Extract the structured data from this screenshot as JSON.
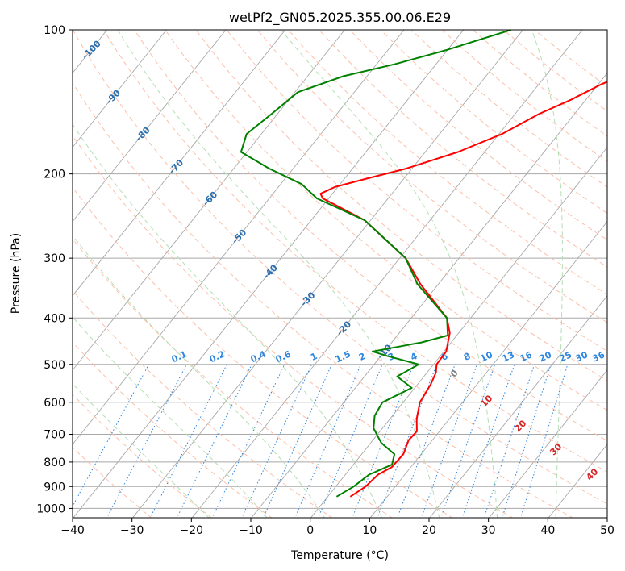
{
  "chart_data": {
    "type": "line",
    "diagram": "skew-T log-P",
    "title": "wetPf2_GN05.2025.355.00.06.E29",
    "xlabel": "Temperature (°C)",
    "ylabel": "Pressure (hPa)",
    "xlim": [
      -40,
      50
    ],
    "ylim": [
      1050,
      100
    ],
    "x_ticks": [
      -40,
      -30,
      -20,
      -10,
      0,
      10,
      20,
      30,
      40,
      50
    ],
    "y_ticks": [
      1000,
      900,
      800,
      700,
      600,
      500,
      400,
      300,
      200,
      100
    ],
    "grid": true,
    "series": [
      {
        "name": "Temperature",
        "color": "#ff0000",
        "points": [
          [
            945,
            3.8
          ],
          [
            900,
            5.0
          ],
          [
            850,
            5.5
          ],
          [
            820,
            6.8
          ],
          [
            770,
            7.0
          ],
          [
            720,
            6.0
          ],
          [
            690,
            6.2
          ],
          [
            650,
            4.5
          ],
          [
            600,
            2.8
          ],
          [
            550,
            2.2
          ],
          [
            520,
            1.5
          ],
          [
            500,
            0.5
          ],
          [
            470,
            0.4
          ],
          [
            430,
            -1.5
          ],
          [
            400,
            -4.0
          ],
          [
            340,
            -13.0
          ],
          [
            300,
            -19.0
          ],
          [
            250,
            -31.0
          ],
          [
            225,
            -41.0
          ],
          [
            220,
            -42.0
          ],
          [
            213,
            -40.5
          ],
          [
            205,
            -36.5
          ],
          [
            195,
            -31.0
          ],
          [
            180,
            -24.5
          ],
          [
            165,
            -19.5
          ],
          [
            150,
            -16.0
          ],
          [
            140,
            -12.5
          ],
          [
            130,
            -9.5
          ],
          [
            120,
            -5.0
          ],
          [
            110,
            0.0
          ],
          [
            100,
            5.5
          ]
        ]
      },
      {
        "name": "Dewpoint",
        "color": "#008000",
        "points": [
          [
            945,
            1.5
          ],
          [
            900,
            3.0
          ],
          [
            850,
            4.0
          ],
          [
            810,
            6.5
          ],
          [
            770,
            5.5
          ],
          [
            730,
            1.8
          ],
          [
            680,
            -1.5
          ],
          [
            640,
            -3.0
          ],
          [
            600,
            -3.5
          ],
          [
            560,
            -0.5
          ],
          [
            530,
            -4.5
          ],
          [
            500,
            -2.5
          ],
          [
            480,
            -9.0
          ],
          [
            470,
            -12.0
          ],
          [
            450,
            -5.0
          ],
          [
            435,
            -1.5
          ],
          [
            400,
            -4.0
          ],
          [
            340,
            -13.5
          ],
          [
            300,
            -19.0
          ],
          [
            250,
            -31.0
          ],
          [
            225,
            -42.0
          ],
          [
            210,
            -46.5
          ],
          [
            195,
            -54.0
          ],
          [
            180,
            -61.0
          ],
          [
            165,
            -62.5
          ],
          [
            150,
            -61.0
          ],
          [
            135,
            -59.5
          ],
          [
            125,
            -54.0
          ],
          [
            118,
            -47.0
          ],
          [
            110,
            -40.0
          ],
          [
            100,
            -32.0
          ]
        ]
      }
    ],
    "dry_adiabat_labels": [
      "-100",
      "-90",
      "-80",
      "-70",
      "-60",
      "-50",
      "-40",
      "-30",
      "-20",
      "-10"
    ],
    "moist_adiabat_labels": [
      "0",
      "10",
      "20",
      "30",
      "40"
    ],
    "mixing_ratio_labels": [
      "0.1",
      "0.2",
      "0.4",
      "0.6",
      "1",
      "1.5",
      "2",
      "3",
      "4",
      "6",
      "8",
      "10",
      "13",
      "16",
      "20",
      "25",
      "30",
      "36"
    ],
    "colors": {
      "temperature": "#ff0000",
      "dewpoint": "#008000",
      "isotherm": "#a8a8a8",
      "dry_adiabat": "#fcbfaa",
      "moist_adiabat": "#b4deb4",
      "mixing_ratio": "#2e86de",
      "dry_label": "#2b6faf",
      "moist_label": "#d62728",
      "zero_label": "#808080",
      "lcl_curve": "#d8c4a8"
    }
  }
}
